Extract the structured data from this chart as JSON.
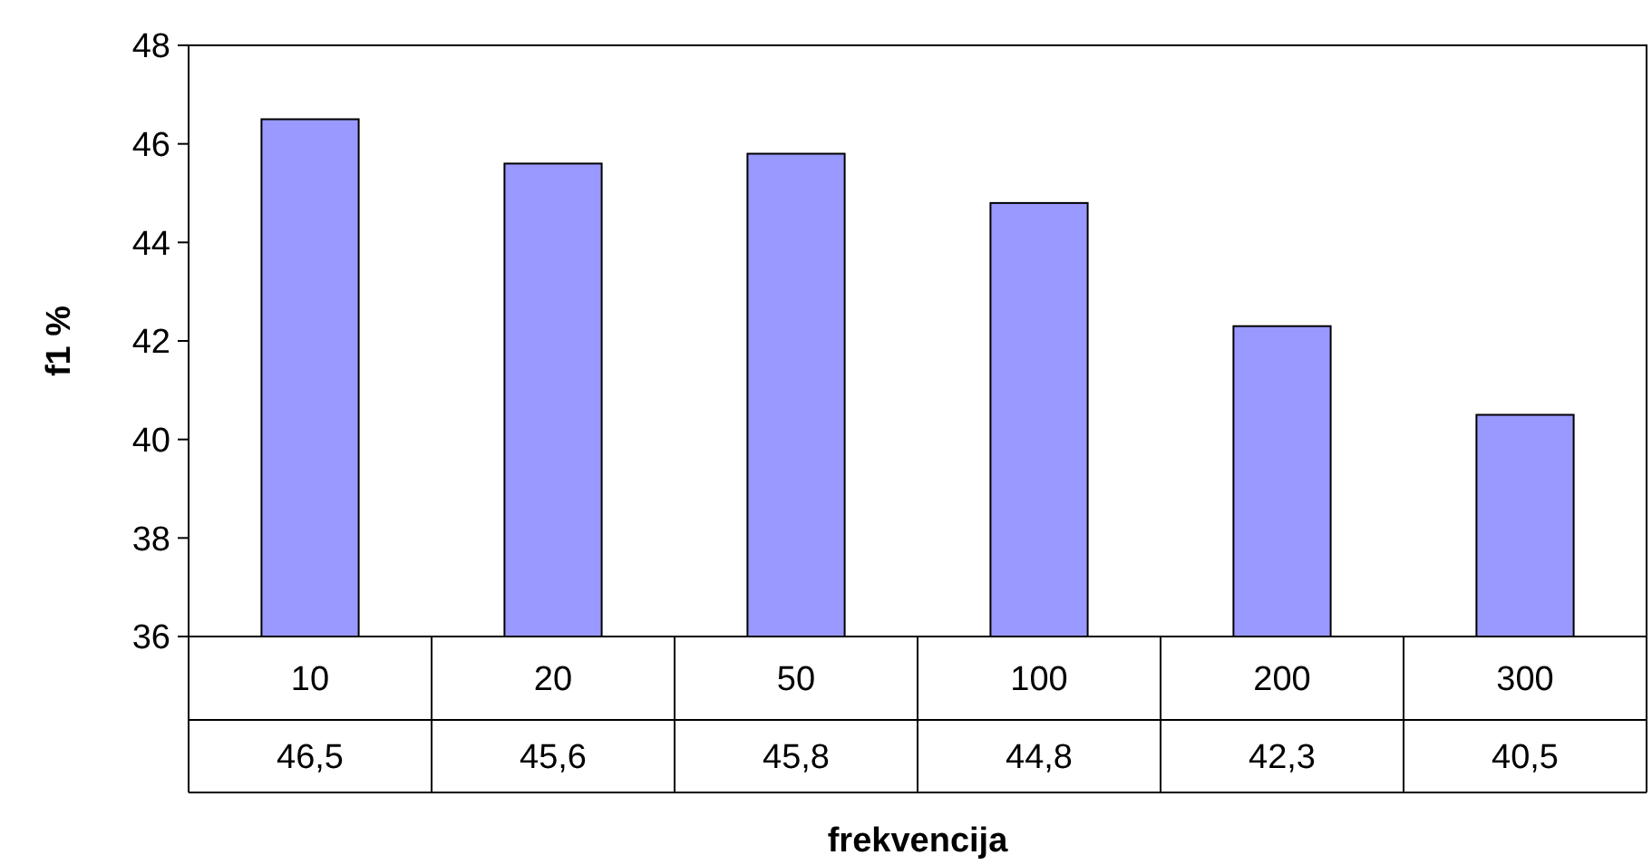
{
  "chart_data": {
    "type": "bar",
    "xlabel": "frekvencija",
    "ylabel": "f1 %",
    "categories": [
      "10",
      "20",
      "50",
      "100",
      "200",
      "300"
    ],
    "values": [
      46.5,
      45.6,
      45.8,
      44.8,
      42.3,
      40.5
    ],
    "value_labels": [
      "46,5",
      "45,6",
      "45,8",
      "44,8",
      "42,3",
      "40,5"
    ],
    "color": "#9999ff",
    "ylim": [
      36,
      48
    ],
    "yticks": [
      36,
      38,
      40,
      42,
      44,
      46,
      48
    ],
    "grid": false
  }
}
